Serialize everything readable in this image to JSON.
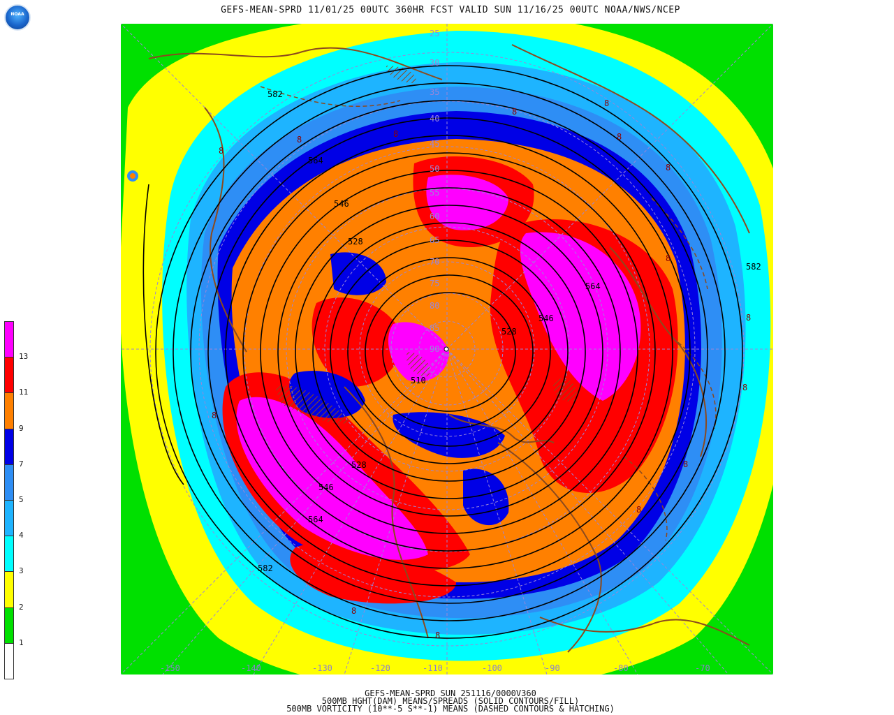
{
  "header": {
    "title": "GEFS-MEAN-SPRD 11/01/25 00UTC 360HR FCST VALID SUN 11/16/25 00UTC NOAA/NWS/NCEP",
    "logo_text": "NOAA"
  },
  "map": {
    "projection": "north-polar-stereographic",
    "fill_field": "500mb height spread",
    "contour_field": "500mb height mean",
    "height_contour_labels": [
      "582",
      "564",
      "546",
      "528",
      "510",
      "528",
      "546",
      "564",
      "582",
      "528",
      "546",
      "564",
      "582"
    ],
    "latitude_labels": [
      "25",
      "30",
      "35",
      "40",
      "45",
      "50",
      "55",
      "60",
      "65",
      "70",
      "75",
      "80",
      "85",
      "90"
    ],
    "vorticity_label": "8",
    "colors": {
      "ocean_green": "#00e000",
      "coastline": "#8b4a1e",
      "contour": "#000000",
      "grid": "#9a86d8"
    }
  },
  "colorbar": {
    "segments": [
      {
        "color": "#ffffff"
      },
      {
        "color": "#00e000"
      },
      {
        "color": "#ffff00"
      },
      {
        "color": "#00ffff"
      },
      {
        "color": "#1eb4ff"
      },
      {
        "color": "#2e8ef5"
      },
      {
        "color": "#0000e6"
      },
      {
        "color": "#ff8000"
      },
      {
        "color": "#ff0000"
      },
      {
        "color": "#ff00ff"
      }
    ],
    "labels": [
      "1",
      "2",
      "3",
      "4",
      "5",
      "7",
      "9",
      "11",
      "13"
    ]
  },
  "longitude_labels": [
    "-150",
    "-140",
    "-130",
    "-120",
    "-110",
    "-100",
    "-90",
    "-80",
    "-70"
  ],
  "footer": {
    "line1": "GEFS-MEAN-SPRD SUN 251116/0000V360",
    "line2": "500MB HGHT(DAM) MEANS/SPREADS (SOLID CONTOURS/FILL)",
    "line3": "500MB VORTICITY (10**-5 S**-1) MEANS (DASHED CONTOURS & HATCHING)"
  }
}
